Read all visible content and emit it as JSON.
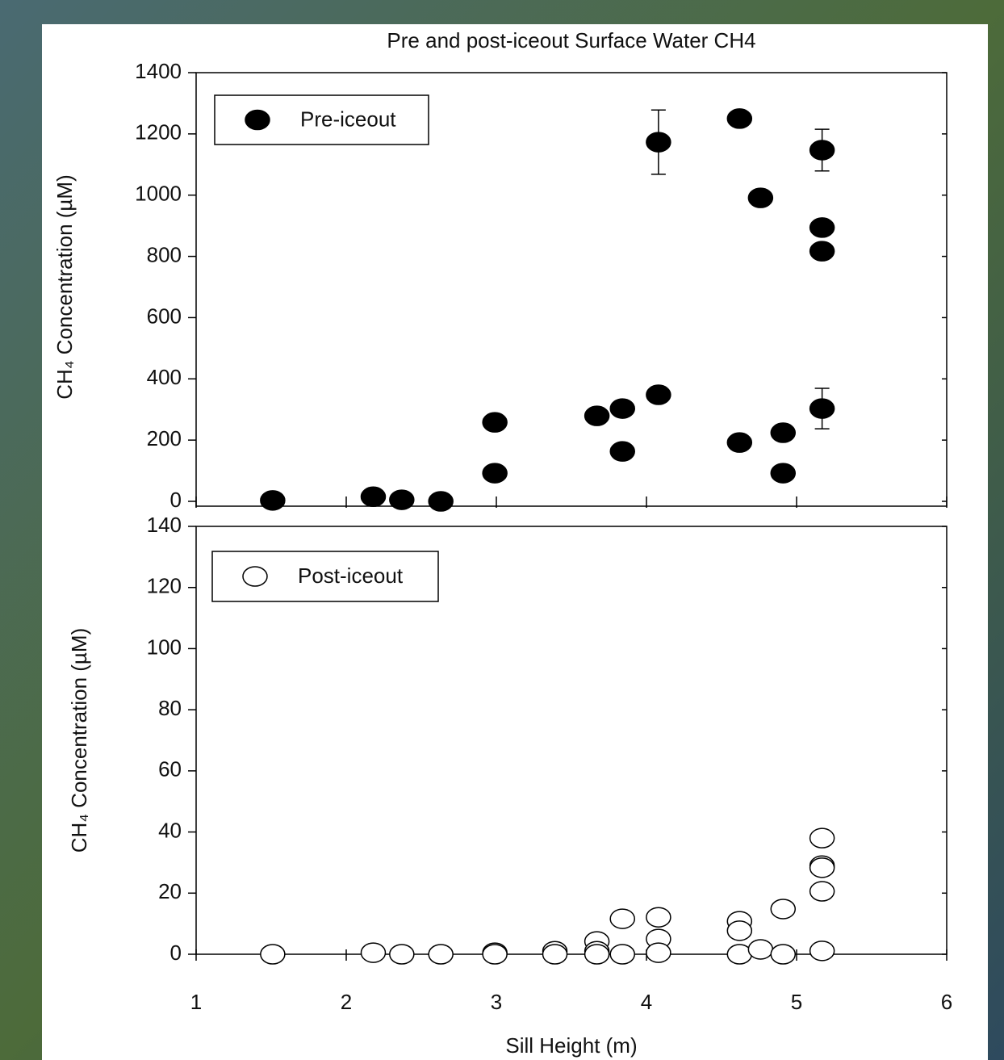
{
  "chart_data": [
    {
      "type": "scatter",
      "title": "Pre and post-iceout Surface Water CH4",
      "ylabel": "CH₄ Concentration (µM)",
      "xlim": [
        1,
        6
      ],
      "ylim": [
        0,
        1400
      ],
      "yticks": [
        0,
        200,
        400,
        600,
        800,
        1000,
        1200,
        1400
      ],
      "legend": "upper left",
      "series": [
        {
          "name": "Pre-iceout",
          "color": "#000000",
          "filled": true,
          "x": [
            1.51,
            2.18,
            2.37,
            2.63,
            2.99,
            2.99,
            3.67,
            3.84,
            3.84,
            4.08,
            4.08,
            4.62,
            4.62,
            4.76,
            4.91,
            4.91,
            5.17,
            5.17,
            5.17,
            5.17
          ],
          "values": [
            3,
            15,
            5,
            0,
            258,
            92,
            279,
            303,
            163,
            348,
            1173,
            1250,
            192,
            991,
            224,
            92,
            1147,
            894,
            817,
            303
          ],
          "errors": [
            null,
            null,
            null,
            null,
            null,
            null,
            null,
            null,
            null,
            null,
            105,
            null,
            null,
            null,
            null,
            null,
            68,
            null,
            null,
            66
          ]
        }
      ]
    },
    {
      "type": "scatter",
      "ylabel": "CH₄ Concentration (µM)",
      "xlabel": "Sill Height (m)",
      "xlim": [
        1,
        6
      ],
      "xticks": [
        1,
        2,
        3,
        4,
        5,
        6
      ],
      "ylim": [
        0,
        140
      ],
      "yticks": [
        0,
        20,
        40,
        60,
        80,
        100,
        120,
        140
      ],
      "legend": "upper left",
      "series": [
        {
          "name": "Post-iceout",
          "color": "#000000",
          "filled": false,
          "x": [
            1.51,
            2.18,
            2.37,
            2.63,
            2.99,
            2.99,
            3.39,
            3.39,
            3.67,
            3.67,
            3.67,
            3.84,
            3.84,
            4.08,
            4.08,
            4.08,
            4.62,
            4.62,
            4.62,
            4.76,
            4.91,
            4.91,
            5.17,
            5.17,
            5.17,
            5.17,
            5.17
          ],
          "values": [
            0,
            0.5,
            0,
            0,
            0.5,
            0,
            1,
            0,
            4.2,
            1,
            0,
            11.6,
            0,
            12.1,
            5,
            0.5,
            10.8,
            7.7,
            0,
            1.6,
            14.8,
            0,
            38,
            29,
            28.3,
            20.6,
            1.1
          ]
        }
      ]
    }
  ]
}
